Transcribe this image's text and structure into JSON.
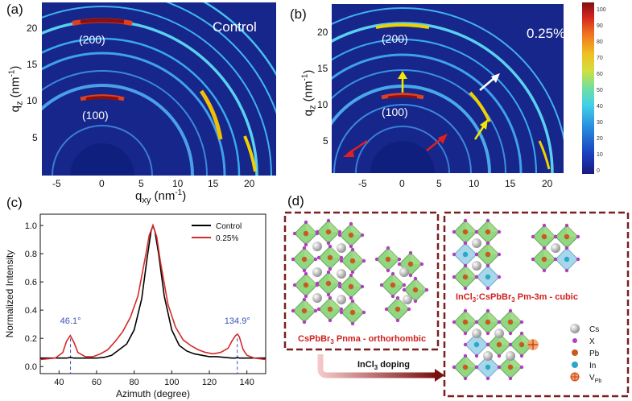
{
  "panel_a": {
    "label": "(a)",
    "condition": "Control",
    "ring_200": "(200)",
    "ring_100": "(100)",
    "x_axis_label": "q",
    "x_axis_sub": "xy",
    "x_axis_unit": " (nm",
    "x_axis_unit_sup": "-1",
    "x_axis_unit_end": ")",
    "y_axis_label": "q",
    "y_axis_sub": "z",
    "y_axis_unit": " (nm",
    "y_axis_unit_sup": "-1",
    "y_axis_unit_end": ")",
    "x_ticks": [
      "-5",
      "0",
      "5",
      "10",
      "15",
      "20"
    ],
    "y_ticks": [
      "20",
      "15",
      "10",
      "5"
    ]
  },
  "panel_b": {
    "label": "(b)",
    "condition": "0.25%",
    "ring_200": "(200)",
    "ring_100": "(100)",
    "y_axis_label": "q",
    "y_axis_sub": "z",
    "y_axis_unit": " (nm",
    "y_axis_unit_sup": "-1",
    "y_axis_unit_end": ")",
    "x_ticks": [
      "-5",
      "0",
      "5",
      "10",
      "15",
      "20"
    ],
    "y_ticks": [
      "20",
      "15",
      "10",
      "5"
    ],
    "colorbar_ticks": [
      "100",
      "90",
      "80",
      "70",
      "60",
      "50",
      "40",
      "30",
      "20",
      "10",
      "0"
    ],
    "arrow_colors": {
      "red": "#e02020",
      "yellow": "#f2e600",
      "white": "#ffffff"
    }
  },
  "panel_c": {
    "label": "(c)",
    "chart_data": {
      "type": "line",
      "xlabel": "Azimuth (degree)",
      "ylabel": "Normalized Intensity",
      "xlim": [
        30,
        150
      ],
      "ylim": [
        -0.05,
        1.08
      ],
      "x_ticks": [
        "40",
        "60",
        "80",
        "100",
        "120",
        "140"
      ],
      "y_ticks": [
        "0.0",
        "0.2",
        "0.4",
        "0.6",
        "0.8",
        "1.0"
      ],
      "legend_position": "top-right",
      "annotations": [
        "46.1°",
        "134.9°"
      ],
      "annotation_x": [
        46.1,
        134.9
      ],
      "series": [
        {
          "name": "Control",
          "color": "#000000",
          "x": [
            30,
            40,
            44,
            46,
            48,
            52,
            56,
            60,
            64,
            68,
            72,
            76,
            80,
            84,
            87,
            89,
            90,
            91,
            93,
            96,
            100,
            104,
            108,
            112,
            116,
            120,
            124,
            128,
            132,
            134,
            135,
            136,
            138,
            142,
            146,
            150
          ],
          "y": [
            0.06,
            0.06,
            0.06,
            0.065,
            0.06,
            0.06,
            0.06,
            0.06,
            0.065,
            0.08,
            0.12,
            0.16,
            0.26,
            0.48,
            0.78,
            0.96,
            1.0,
            0.96,
            0.8,
            0.5,
            0.26,
            0.15,
            0.11,
            0.09,
            0.08,
            0.07,
            0.07,
            0.065,
            0.06,
            0.06,
            0.065,
            0.06,
            0.06,
            0.06,
            0.06,
            0.06
          ]
        },
        {
          "name": "0.25%",
          "color": "#d42a2a",
          "x": [
            30,
            38,
            42,
            44,
            46,
            48,
            50,
            54,
            58,
            62,
            66,
            70,
            74,
            78,
            82,
            86,
            88,
            90,
            92,
            94,
            98,
            102,
            106,
            110,
            114,
            118,
            122,
            126,
            130,
            132,
            134,
            135,
            136,
            138,
            140,
            144,
            150
          ],
          "y": [
            0.05,
            0.06,
            0.1,
            0.18,
            0.22,
            0.17,
            0.1,
            0.07,
            0.07,
            0.09,
            0.12,
            0.18,
            0.25,
            0.35,
            0.5,
            0.78,
            0.93,
            1.0,
            0.92,
            0.74,
            0.44,
            0.28,
            0.19,
            0.15,
            0.12,
            0.1,
            0.09,
            0.1,
            0.13,
            0.18,
            0.22,
            0.23,
            0.21,
            0.12,
            0.08,
            0.06,
            0.05
          ]
        }
      ]
    }
  },
  "panel_d": {
    "label": "(d)",
    "left_caption_formula": "CsPbBr",
    "left_caption_sub": "3",
    "left_caption_rest": "  Pnma - orthorhombic",
    "right_caption_a": "InCl",
    "right_caption_a_sub": "3",
    "right_caption_b": ":CsPbBr",
    "right_caption_b_sub": "3",
    "right_caption_rest": " Pm-3m - cubic",
    "doping_label": "InCl",
    "doping_sub": "3",
    "doping_rest": " doping",
    "legend": [
      {
        "symbol": "Cs",
        "color": "#c8c8c8"
      },
      {
        "symbol": "X",
        "color": "#b040c0"
      },
      {
        "symbol": "Pb",
        "color": "#c85a20"
      },
      {
        "symbol": "In",
        "color": "#2aa8c8"
      },
      {
        "symbol": "V",
        "sub": "Pb",
        "color": "#f0a060"
      }
    ],
    "frame_color": "#7a1f1f",
    "caption_color": "#d02020"
  }
}
